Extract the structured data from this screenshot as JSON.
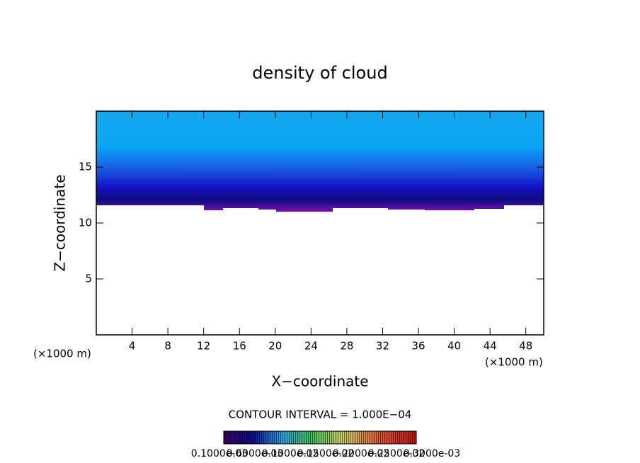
{
  "chart_data": {
    "type": "contour",
    "title": "density of cloud",
    "xlabel": "X−coordinate",
    "ylabel": "Z−coordinate",
    "xunit": "(×1000 m)",
    "yunit": "(×1000 m)",
    "xlim": [
      0,
      50
    ],
    "ylim": [
      0,
      20
    ],
    "xticks": [
      4,
      8,
      12,
      16,
      20,
      24,
      28,
      32,
      36,
      40,
      44,
      48
    ],
    "yticks": [
      5,
      10,
      15
    ],
    "contour_interval": "CONTOUR INTERVAL = 1.000E−04",
    "colorbar_labels": [
      "0.1000e-03",
      "0.6000e-03",
      "0.1000e-02",
      "0.1500e-02",
      "0.2000e-02",
      "0.2500e-02",
      "0.3000e-03"
    ]
  }
}
